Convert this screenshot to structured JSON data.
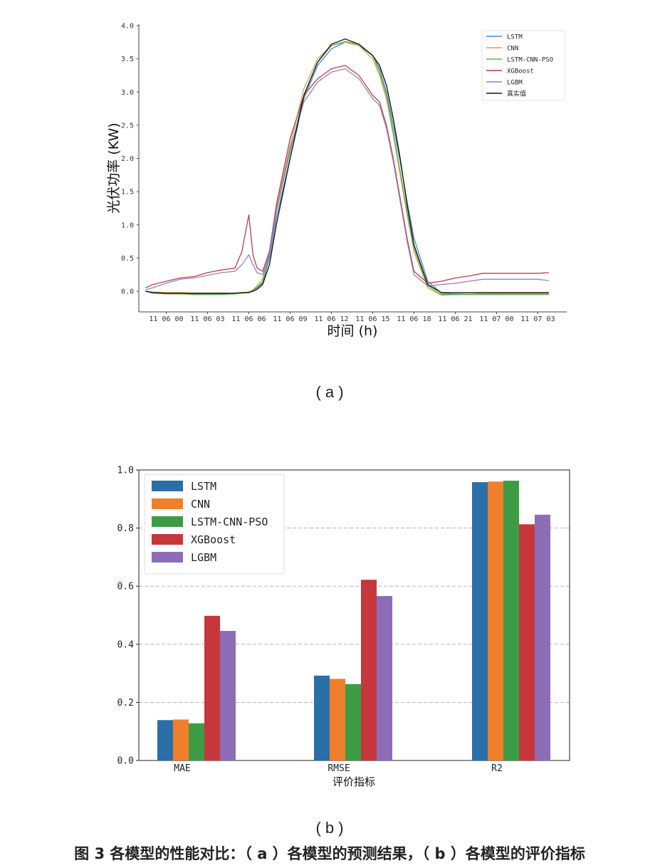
{
  "figure": {
    "sublabel_a": "( a )",
    "sublabel_b": "( b )",
    "caption": "图 3  各模型的性能对比：（ a ）各模型的预测结果，（ b ）各模型的评价指标"
  },
  "chart_data": [
    {
      "type": "line",
      "xlabel": "时间 (h)",
      "ylabel": "光伏功率 (KW)",
      "ylim": [
        -0.3,
        4.0
      ],
      "yticks": [
        "4.0",
        "3.5",
        "3.0",
        "2.5",
        "2.0",
        "1.5",
        "1.0",
        "0.5",
        "0.0"
      ],
      "xticks": [
        "11 06 00",
        "11 06 03",
        "11 06 06",
        "11 06 09",
        "11 06 12",
        "11 06 15",
        "11 06 18",
        "11 06 21",
        "11 07 00",
        "11 07 03"
      ],
      "x": [
        -1.5,
        -1,
        0,
        1,
        2,
        3,
        4,
        5,
        5.5,
        6,
        6.3,
        6.6,
        7,
        7.5,
        8,
        9,
        10,
        11,
        12,
        13,
        14,
        15,
        15.5,
        16,
        16.5,
        17,
        17.5,
        18,
        19,
        20,
        21,
        22,
        23,
        24,
        25,
        26,
        27,
        27.8
      ],
      "legend_placement": "top-right",
      "grid": false,
      "series": [
        {
          "name": "LSTM",
          "color": "#4a86c5",
          "values": [
            0.0,
            -0.02,
            -0.03,
            -0.03,
            -0.04,
            -0.04,
            -0.04,
            -0.03,
            -0.03,
            -0.02,
            0.0,
            0.05,
            0.12,
            0.5,
            1.1,
            2.0,
            2.9,
            3.4,
            3.65,
            3.75,
            3.7,
            3.55,
            3.35,
            3.0,
            2.5,
            1.95,
            1.35,
            0.8,
            0.15,
            -0.03,
            -0.04,
            -0.04,
            -0.04,
            -0.04,
            -0.04,
            -0.04,
            -0.04,
            -0.04
          ]
        },
        {
          "name": "CNN",
          "color": "#d9a24a",
          "values": [
            0.0,
            -0.01,
            -0.02,
            -0.02,
            -0.03,
            -0.03,
            -0.03,
            -0.03,
            -0.02,
            -0.01,
            0.02,
            0.08,
            0.18,
            0.6,
            1.25,
            2.2,
            3.05,
            3.5,
            3.7,
            3.75,
            3.7,
            3.5,
            3.25,
            2.9,
            2.35,
            1.75,
            1.15,
            0.6,
            0.05,
            -0.06,
            -0.05,
            -0.04,
            -0.03,
            -0.03,
            -0.03,
            -0.03,
            -0.03,
            -0.03
          ]
        },
        {
          "name": "LSTM-CNN-PSO",
          "color": "#5fb44e",
          "values": [
            0.0,
            -0.03,
            -0.04,
            -0.04,
            -0.05,
            -0.05,
            -0.05,
            -0.04,
            -0.03,
            -0.02,
            0.01,
            0.06,
            0.14,
            0.55,
            1.2,
            2.1,
            2.95,
            3.45,
            3.7,
            3.76,
            3.72,
            3.55,
            3.3,
            2.95,
            2.4,
            1.8,
            1.2,
            0.65,
            0.08,
            -0.05,
            -0.05,
            -0.05,
            -0.05,
            -0.05,
            -0.05,
            -0.05,
            -0.05,
            -0.05
          ]
        },
        {
          "name": "XGBoost",
          "color": "#b4414e",
          "values": [
            0.05,
            0.1,
            0.15,
            0.2,
            0.22,
            0.28,
            0.32,
            0.35,
            0.6,
            1.15,
            0.55,
            0.35,
            0.3,
            0.6,
            1.3,
            2.3,
            2.95,
            3.2,
            3.35,
            3.4,
            3.25,
            2.95,
            2.85,
            2.5,
            2.0,
            1.4,
            0.8,
            0.3,
            0.12,
            0.15,
            0.2,
            0.23,
            0.27,
            0.27,
            0.27,
            0.27,
            0.27,
            0.28
          ]
        },
        {
          "name": "LGBM",
          "color": "#9a7fc0",
          "values": [
            0.02,
            0.05,
            0.12,
            0.18,
            0.2,
            0.24,
            0.28,
            0.3,
            0.4,
            0.55,
            0.4,
            0.28,
            0.25,
            0.55,
            1.2,
            2.15,
            2.85,
            3.15,
            3.3,
            3.35,
            3.2,
            2.9,
            2.8,
            2.45,
            1.95,
            1.35,
            0.75,
            0.25,
            0.08,
            0.1,
            0.12,
            0.15,
            0.18,
            0.18,
            0.18,
            0.18,
            0.18,
            0.16
          ]
        },
        {
          "name": "真实值",
          "color": "#111111",
          "values": [
            0.0,
            -0.02,
            -0.03,
            -0.03,
            -0.03,
            -0.03,
            -0.03,
            -0.03,
            -0.02,
            -0.02,
            0.0,
            0.03,
            0.1,
            0.4,
            1.0,
            2.0,
            2.95,
            3.45,
            3.72,
            3.8,
            3.72,
            3.55,
            3.4,
            3.1,
            2.6,
            2.0,
            1.3,
            0.7,
            0.1,
            -0.02,
            -0.02,
            -0.02,
            -0.02,
            -0.02,
            -0.02,
            -0.02,
            -0.02,
            -0.02
          ]
        }
      ]
    },
    {
      "type": "bar",
      "xlabel": "评价指标",
      "ylabel": "",
      "ylim": [
        0,
        1.0
      ],
      "yticks": [
        "1.0",
        "0.8",
        "0.6",
        "0.4",
        "0.2",
        "0.0"
      ],
      "categories": [
        "MAE",
        "RMSE",
        "R2"
      ],
      "legend_placement": "top-left",
      "grid": true,
      "series": [
        {
          "name": "LSTM",
          "color": "#2b6fa8",
          "values": [
            0.139,
            0.292,
            0.958
          ]
        },
        {
          "name": "CNN",
          "color": "#f07f2c",
          "values": [
            0.141,
            0.281,
            0.96
          ]
        },
        {
          "name": "LSTM-CNN-PSO",
          "color": "#3c9c44",
          "values": [
            0.128,
            0.263,
            0.963
          ]
        },
        {
          "name": "XGBoost",
          "color": "#c5373b",
          "values": [
            0.498,
            0.622,
            0.813
          ]
        },
        {
          "name": "LGBM",
          "color": "#8d6db8",
          "values": [
            0.446,
            0.566,
            0.846
          ]
        }
      ]
    }
  ]
}
